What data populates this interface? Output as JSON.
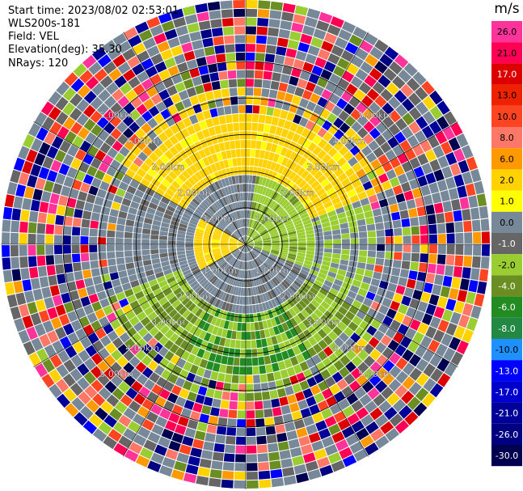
{
  "info": {
    "start_time": "Start time: 2023/08/02 02:53:01",
    "station": "WLS200s-181",
    "field": "Field: VEL",
    "elevation": "Elevation(deg): 35.30",
    "nrays": "NRays: 120"
  },
  "colorbar": {
    "unit": "m/s",
    "ticks": [
      "26.0",
      "21.0",
      "17.0",
      "13.0",
      "10.0",
      "8.0",
      "6.0",
      "2.0",
      "1.0",
      "0.0",
      "-1.0",
      "-2.0",
      "-4.0",
      "-6.0",
      "-8.0",
      "-10.0",
      "-13.0",
      "-17.0",
      "-21.0",
      "-26.0",
      "-30.0"
    ],
    "colors": [
      "#ff3399",
      "#ff0055",
      "#dd0000",
      "#ee2200",
      "#ff4422",
      "#ff7766",
      "#ff9900",
      "#ffd200",
      "#ffff00",
      "#778899",
      "#666666",
      "#9acd32",
      "#6b8e23",
      "#228b22",
      "#228844",
      "#1e90ff",
      "#0000ff",
      "#0000cd",
      "#000099",
      "#000080",
      "#000050"
    ]
  },
  "chart_data": {
    "type": "heatmap",
    "projection": "polar PPI",
    "field": "VEL",
    "unit": "m/s",
    "nrays": 120,
    "ring_labels": [
      "1.00km",
      "2.00km",
      "3.00km",
      "4.00km",
      "5.00km"
    ],
    "ring_distances_km": [
      1,
      2,
      3,
      4,
      5
    ],
    "max_range_km": 6.7,
    "value_range": [
      -30,
      26
    ],
    "regions": [
      {
        "description": "near zero velocity",
        "range_km": [
          0,
          1.6
        ],
        "value": 0.0
      },
      {
        "description": "yellow positive arc (north)",
        "azimuth_deg": [
          300,
          70
        ],
        "range_km": [
          2.2,
          3.6
        ],
        "value": 2.0
      },
      {
        "description": "yellow core (west)",
        "azimuth_deg": [
          240,
          300
        ],
        "range_km": [
          0,
          1.4
        ],
        "value": 2.0
      },
      {
        "description": "green negative lobe (north-east)",
        "azimuth_deg": [
          10,
          110
        ],
        "range_km": [
          0,
          1.9
        ],
        "value": -2.0
      },
      {
        "description": "green negative lobe (south)",
        "azimuth_deg": [
          120,
          250
        ],
        "range_km": [
          2.2,
          4.2
        ],
        "value": -4.0
      },
      {
        "description": "noisy outer ranges",
        "range_km": [
          4.0,
          6.7
        ],
        "value": null
      }
    ]
  }
}
